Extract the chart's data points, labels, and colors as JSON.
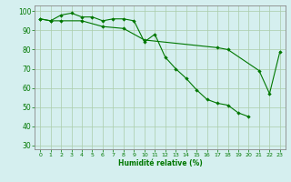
{
  "xlabel": "Humidité relative (%)",
  "line1": {
    "x": [
      0,
      1,
      2,
      3,
      4,
      5,
      6,
      7,
      8,
      9,
      10,
      11,
      12,
      13,
      14,
      15,
      16,
      17,
      18,
      19,
      20
    ],
    "y": [
      96,
      95,
      98,
      99,
      97,
      97,
      95,
      96,
      96,
      95,
      84,
      88,
      76,
      70,
      65,
      59,
      54,
      52,
      51,
      47,
      45
    ]
  },
  "line2": {
    "x": [
      0,
      1,
      2,
      4,
      6,
      8,
      10,
      17,
      18,
      21,
      22,
      23
    ],
    "y": [
      96,
      95,
      95,
      95,
      92,
      91,
      85,
      81,
      80,
      69,
      57,
      79
    ]
  },
  "line_color": "#007700",
  "marker_color": "#007700",
  "bg_color": "#d5efef",
  "grid_color": "#aaccaa",
  "ylim": [
    28,
    103
  ],
  "xlim": [
    -0.5,
    23.5
  ],
  "yticks": [
    30,
    40,
    50,
    60,
    70,
    80,
    90,
    100
  ],
  "xticks": [
    0,
    1,
    2,
    3,
    4,
    5,
    6,
    7,
    8,
    9,
    10,
    11,
    12,
    13,
    14,
    15,
    16,
    17,
    18,
    19,
    20,
    21,
    22,
    23
  ],
  "figsize": [
    3.2,
    2.0
  ],
  "dpi": 100
}
